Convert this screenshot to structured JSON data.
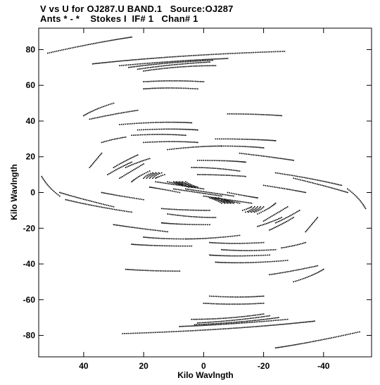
{
  "header": {
    "line1": "V vs U for OJ287.U BAND.1   Source:OJ287",
    "line2": "Ants * - *    Stokes I  IF# 1   Chan# 1"
  },
  "chart_data": {
    "type": "scatter",
    "title": "V vs U for OJ287.U BAND.1   Source:OJ287",
    "subtitle": "Ants * - *    Stokes I  IF# 1   Chan# 1",
    "xlabel": "Kilo Wavlngth",
    "ylabel": "Kilo Wavlngth",
    "x_reversed": true,
    "xlim": [
      55,
      -56
    ],
    "ylim": [
      -92,
      92
    ],
    "xticks": [
      40,
      20,
      0,
      -20,
      -40
    ],
    "xtick_labels": [
      "40",
      "20",
      "0",
      "-20",
      "-40"
    ],
    "yticks": [
      80,
      60,
      40,
      20,
      0,
      -20,
      -40,
      -60,
      -80
    ],
    "ytick_labels": [
      "80",
      "60",
      "40",
      "20",
      "0",
      "-20",
      "-40",
      "-60",
      "-80"
    ],
    "grid": false,
    "marker_color": "#000000",
    "symmetric": true,
    "tracks": [
      {
        "u": [
          52,
          36,
          24
        ],
        "v": [
          78,
          84,
          87
        ]
      },
      {
        "u": [
          37,
          10,
          -27
        ],
        "v": [
          72,
          77,
          79
        ]
      },
      {
        "u": [
          28,
          8,
          -8
        ],
        "v": [
          71,
          74,
          75
        ]
      },
      {
        "u": [
          25,
          12,
          -3
        ],
        "v": [
          70,
          73,
          74
        ]
      },
      {
        "u": [
          22,
          10,
          -2
        ],
        "v": [
          69,
          72,
          73
        ]
      },
      {
        "u": [
          20,
          8,
          -4
        ],
        "v": [
          68,
          71,
          71
        ]
      },
      {
        "u": [
          20,
          10,
          0
        ],
        "v": [
          62,
          63,
          62
        ]
      },
      {
        "u": [
          20,
          12,
          2
        ],
        "v": [
          58,
          59,
          58
        ]
      },
      {
        "u": [
          40,
          36,
          30
        ],
        "v": [
          43,
          47,
          50
        ]
      },
      {
        "u": [
          38,
          30,
          22
        ],
        "v": [
          41,
          44,
          46
        ]
      },
      {
        "u": [
          28,
          14,
          4
        ],
        "v": [
          38,
          40,
          39
        ]
      },
      {
        "u": [
          22,
          10,
          2
        ],
        "v": [
          35,
          36,
          35
        ]
      },
      {
        "u": [
          24,
          14,
          6
        ],
        "v": [
          32,
          33,
          32
        ]
      },
      {
        "u": [
          -8,
          -18,
          -26
        ],
        "v": [
          44,
          44,
          43
        ]
      },
      {
        "u": [
          -4,
          -16,
          -24
        ],
        "v": [
          30,
          30,
          29
        ]
      },
      {
        "u": [
          -6,
          -14,
          -20
        ],
        "v": [
          26,
          26,
          25
        ]
      },
      {
        "u": [
          -12,
          -22,
          -30
        ],
        "v": [
          22,
          20,
          18
        ]
      },
      {
        "u": [
          2,
          -8,
          -14
        ],
        "v": [
          18,
          18,
          17
        ]
      },
      {
        "u": [
          12,
          2,
          -6
        ],
        "v": [
          24,
          26,
          26
        ]
      },
      {
        "u": [
          20,
          10,
          2
        ],
        "v": [
          28,
          29,
          28
        ]
      },
      {
        "u": [
          34,
          30,
          26
        ],
        "v": [
          28,
          30,
          31
        ]
      },
      {
        "u": [
          38,
          36,
          34
        ],
        "v": [
          14,
          18,
          22
        ]
      },
      {
        "u": [
          32,
          28,
          24
        ],
        "v": [
          10,
          14,
          17
        ]
      },
      {
        "u": [
          28,
          24,
          20
        ],
        "v": [
          8,
          12,
          16
        ]
      },
      {
        "u": [
          24,
          22,
          18
        ],
        "v": [
          6,
          9,
          12
        ]
      },
      {
        "u": [
          20,
          19,
          17
        ],
        "v": [
          8,
          10,
          11
        ]
      },
      {
        "u": [
          19,
          18,
          16
        ],
        "v": [
          8,
          10,
          11
        ]
      },
      {
        "u": [
          18,
          17,
          15
        ],
        "v": [
          8,
          10,
          11
        ]
      },
      {
        "u": [
          17,
          16,
          14
        ],
        "v": [
          8,
          10,
          11
        ]
      },
      {
        "u": [
          16,
          15,
          13
        ],
        "v": [
          8,
          9,
          10
        ]
      },
      {
        "u": [
          30,
          26,
          22
        ],
        "v": [
          14,
          18,
          21
        ]
      },
      {
        "u": [
          26,
          22,
          18
        ],
        "v": [
          14,
          17,
          19
        ]
      },
      {
        "u": [
          12,
          9,
          7
        ],
        "v": [
          6,
          5,
          4
        ]
      },
      {
        "u": [
          10,
          8,
          6
        ],
        "v": [
          6,
          5,
          4
        ]
      },
      {
        "u": [
          9,
          7,
          5
        ],
        "v": [
          6,
          5,
          3
        ]
      },
      {
        "u": [
          8,
          6,
          4
        ],
        "v": [
          6,
          5,
          3
        ]
      },
      {
        "u": [
          7,
          5,
          3
        ],
        "v": [
          6,
          4,
          3
        ]
      },
      {
        "u": [
          6,
          4,
          2
        ],
        "v": [
          6,
          4,
          3
        ]
      },
      {
        "u": [
          4,
          -4,
          -12
        ],
        "v": [
          14,
          14,
          12
        ]
      },
      {
        "u": [
          2,
          -6,
          -14
        ],
        "v": [
          10,
          10,
          9
        ]
      },
      {
        "u": [
          6,
          -2,
          -10
        ],
        "v": [
          2,
          0,
          -2
        ]
      },
      {
        "u": [
          0,
          -8,
          -16
        ],
        "v": [
          -2,
          -4,
          -6
        ]
      },
      {
        "u": [
          -24,
          -36,
          -46
        ],
        "v": [
          11,
          8,
          4
        ]
      },
      {
        "u": [
          -30,
          -40,
          -48
        ],
        "v": [
          8,
          4,
          0
        ]
      },
      {
        "u": [
          -20,
          -28,
          -34
        ],
        "v": [
          4,
          2,
          0
        ]
      },
      {
        "u": [
          -8,
          -14,
          -18
        ],
        "v": [
          0,
          -2,
          -3
        ]
      },
      {
        "u": [
          54,
          52,
          48
        ],
        "v": [
          9,
          3,
          -2
        ]
      }
    ]
  }
}
